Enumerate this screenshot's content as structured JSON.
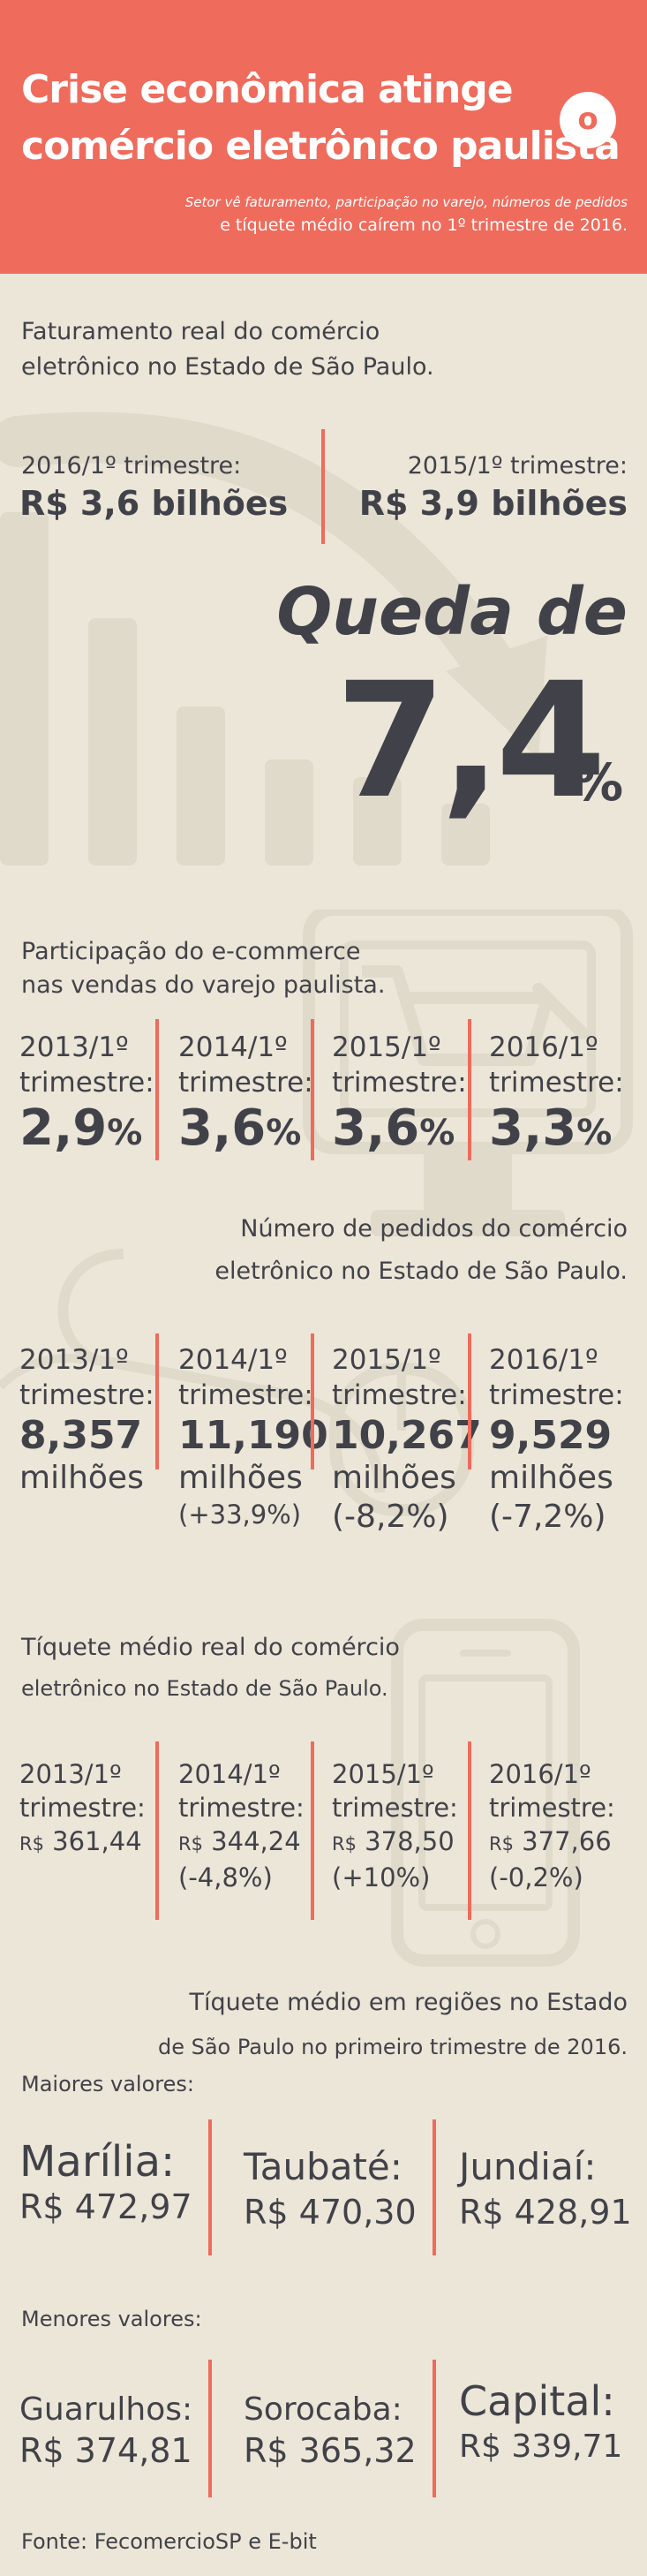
{
  "colors": {
    "accent": "#ef6b5c",
    "background": "#ece6d8",
    "text": "#414249",
    "decor": "#d8d1c1"
  },
  "header": {
    "title_line1": "Crise econômica atinge",
    "title_line2": "comércio eletrônico paulista",
    "badge": "o",
    "subtitle_line1": "Setor vê faturamento, participação no varejo, números de pedidos",
    "subtitle_line2": "e tíquete médio caírem no 1º trimestre de 2016."
  },
  "revenue": {
    "heading_line1": "Faturamento real do comércio",
    "heading_line2": "eletrônico no Estado de São Paulo.",
    "left_label": "2016/1º trimestre:",
    "left_value": "R$ 3,6 bilhões",
    "right_label": "2015/1º trimestre:",
    "right_value": "R$ 3,9 bilhões",
    "drop_label": "Queda de",
    "drop_number": "7,4",
    "drop_unit": "%"
  },
  "share": {
    "heading_line1": "Participação do e-commerce",
    "heading_line2": "nas vendas do varejo paulista.",
    "items": [
      {
        "year": "2013/1º",
        "period": "trimestre:",
        "value": "2,9",
        "unit": "%"
      },
      {
        "year": "2014/1º",
        "period": "trimestre:",
        "value": "3,6",
        "unit": "%"
      },
      {
        "year": "2015/1º",
        "period": "trimestre:",
        "value": "3,6",
        "unit": "%"
      },
      {
        "year": "2016/1º",
        "period": "trimestre:",
        "value": "3,3",
        "unit": "%"
      }
    ]
  },
  "orders": {
    "heading_line1": "Número de pedidos do comércio",
    "heading_line2": "eletrônico no Estado de São Paulo.",
    "items": [
      {
        "year": "2013/1º",
        "period": "trimestre:",
        "value": "8,357",
        "unit": "milhões",
        "change": ""
      },
      {
        "year": "2014/1º",
        "period": "trimestre:",
        "value": "11,190",
        "unit": "milhões",
        "change": "(+33,9%)"
      },
      {
        "year": "2015/1º",
        "period": "trimestre:",
        "value": "10,267",
        "unit": "milhões",
        "change": "(-8,2%)"
      },
      {
        "year": "2016/1º",
        "period": "trimestre:",
        "value": "9,529",
        "unit": "milhões",
        "change": "(-7,2%)"
      }
    ]
  },
  "ticket": {
    "heading_line1": "Tíquete médio real do comércio",
    "heading_line2": "eletrônico no Estado de São Paulo.",
    "items": [
      {
        "year": "2013/1º",
        "period": "trimestre:",
        "currency": "R$",
        "value": "361,44",
        "change": ""
      },
      {
        "year": "2014/1º",
        "period": "trimestre:",
        "currency": "R$",
        "value": "344,24",
        "change": "(-4,8%)"
      },
      {
        "year": "2015/1º",
        "period": "trimestre:",
        "currency": "R$",
        "value": "378,50",
        "change": "(+10%)"
      },
      {
        "year": "2016/1º",
        "period": "trimestre:",
        "currency": "R$",
        "value": "377,66",
        "change": "(-0,2%)"
      }
    ]
  },
  "regions": {
    "heading_line1": "Tíquete médio em regiões no Estado",
    "heading_line2": "de São Paulo no primeiro trimestre de 2016.",
    "highest_label": "Maiores valores:",
    "highest": [
      {
        "city": "Marília:",
        "value": "R$ 472,97"
      },
      {
        "city": "Taubaté:",
        "value": "R$ 470,30"
      },
      {
        "city": "Jundiaí:",
        "value": "R$ 428,91"
      }
    ],
    "lowest_label": "Menores valores:",
    "lowest": [
      {
        "city": "Guarulhos:",
        "value": "R$ 374,81"
      },
      {
        "city": "Sorocaba:",
        "value": "R$ 365,32"
      },
      {
        "city": "Capital:",
        "value": "R$ 339,71"
      }
    ]
  },
  "footer": {
    "source": "Fonte: FecomercioSP e E-bit"
  }
}
